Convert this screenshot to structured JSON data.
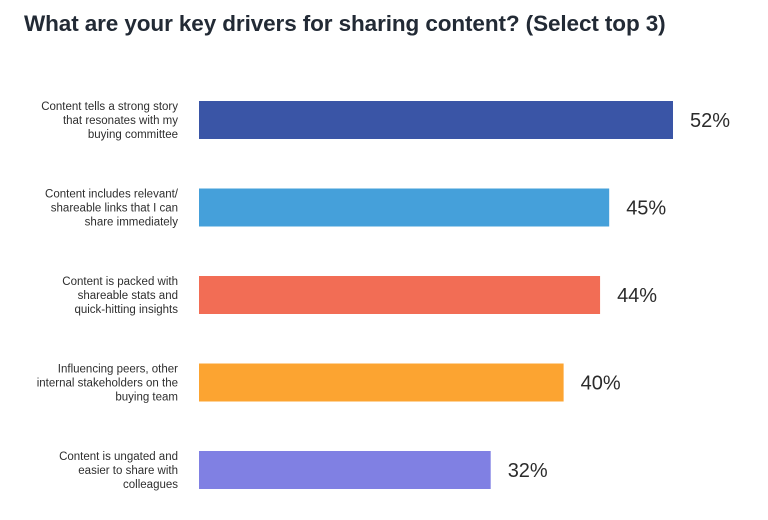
{
  "chart_data": {
    "type": "bar",
    "orientation": "horizontal",
    "title": "What are your key drivers for sharing content? (Select top 3)",
    "categories": [
      [
        "Content tells a strong story",
        "that resonates with my",
        "buying committee"
      ],
      [
        "Content includes relevant/",
        "shareable links that I can",
        "share immediately"
      ],
      [
        "Content is packed with",
        "shareable stats and",
        "quick-hitting insights"
      ],
      [
        "Influencing peers, other",
        "internal stakeholders on the",
        "buying team"
      ],
      [
        "Content is ungated and",
        "easier to share with",
        "colleagues"
      ]
    ],
    "values": [
      52,
      45,
      44,
      40,
      32
    ],
    "value_labels": [
      "52%",
      "45%",
      "44%",
      "40%",
      "32%"
    ],
    "colors": [
      "#3a55a6",
      "#45a0da",
      "#f26d55",
      "#fca431",
      "#8080e3"
    ],
    "xlim": [
      0,
      52
    ],
    "grid": false,
    "legend": "none"
  }
}
